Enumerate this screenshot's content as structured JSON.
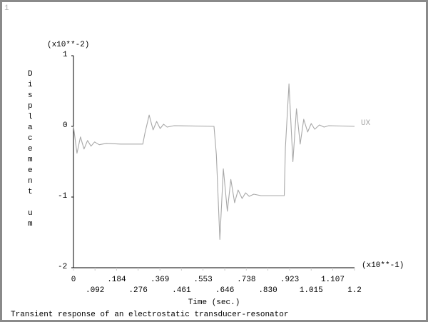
{
  "window_number": "1",
  "caption": "Transient response of an electrostatic transducer-resonator",
  "chart_data": {
    "type": "line",
    "title": "",
    "xlabel": "Time (sec.)",
    "ylabel": "Displacement um",
    "x_multiplier": "(x10**-1)",
    "y_multiplier": "(x10**-2)",
    "xlim": [
      0,
      1.2
    ],
    "ylim": [
      -2,
      1
    ],
    "x_ticks": [
      "0",
      ".092",
      ".184",
      ".276",
      ".369",
      ".461",
      ".553",
      ".646",
      ".738",
      ".830",
      ".923",
      "1.015",
      "1.107",
      "1.2"
    ],
    "y_ticks": [
      "1",
      "0",
      "-1",
      "-2"
    ],
    "grid": false,
    "series": [
      {
        "name": "UX",
        "color": "#a8a8a8",
        "points": [
          [
            0,
            0
          ],
          [
            0.015,
            -0.38
          ],
          [
            0.03,
            -0.15
          ],
          [
            0.045,
            -0.32
          ],
          [
            0.06,
            -0.2
          ],
          [
            0.075,
            -0.28
          ],
          [
            0.09,
            -0.22
          ],
          [
            0.11,
            -0.26
          ],
          [
            0.14,
            -0.24
          ],
          [
            0.2,
            -0.25
          ],
          [
            0.296,
            -0.25
          ],
          [
            0.305,
            -0.1
          ],
          [
            0.323,
            0.16
          ],
          [
            0.34,
            -0.05
          ],
          [
            0.355,
            0.07
          ],
          [
            0.37,
            -0.03
          ],
          [
            0.385,
            0.03
          ],
          [
            0.4,
            -0.01
          ],
          [
            0.43,
            0.01
          ],
          [
            0.6,
            0
          ],
          [
            0.61,
            -0.4
          ],
          [
            0.625,
            -1.6
          ],
          [
            0.64,
            -0.6
          ],
          [
            0.657,
            -1.2
          ],
          [
            0.672,
            -0.75
          ],
          [
            0.688,
            -1.08
          ],
          [
            0.703,
            -0.9
          ],
          [
            0.72,
            -1.02
          ],
          [
            0.735,
            -0.94
          ],
          [
            0.75,
            -0.99
          ],
          [
            0.77,
            -0.96
          ],
          [
            0.8,
            -0.98
          ],
          [
            0.9,
            -0.98
          ],
          [
            0.905,
            -0.3
          ],
          [
            0.92,
            0.6
          ],
          [
            0.937,
            -0.5
          ],
          [
            0.952,
            0.25
          ],
          [
            0.968,
            -0.25
          ],
          [
            0.983,
            0.1
          ],
          [
            1.0,
            -0.08
          ],
          [
            1.015,
            0.04
          ],
          [
            1.03,
            -0.04
          ],
          [
            1.05,
            0.02
          ],
          [
            1.07,
            -0.01
          ],
          [
            1.09,
            0.01
          ],
          [
            1.2,
            0
          ]
        ]
      }
    ]
  }
}
